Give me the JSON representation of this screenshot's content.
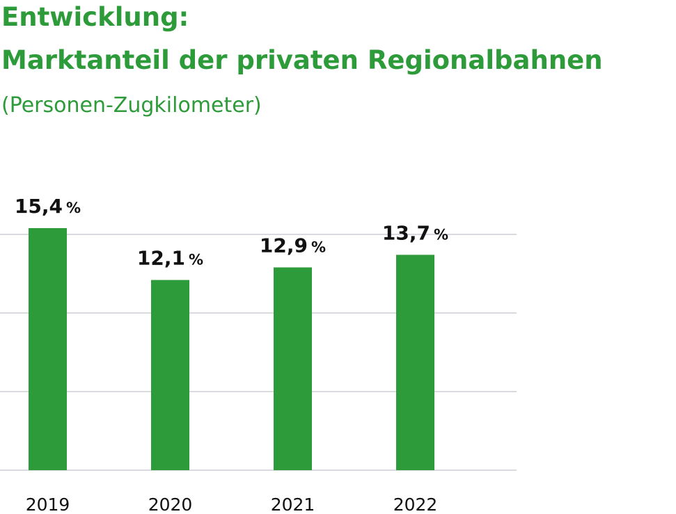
{
  "header": {
    "line1": "Entwicklung:",
    "line2": "Marktanteil der privaten Regionalbahnen",
    "subtitle": "(Personen-Zugkilometer)"
  },
  "colors": {
    "bar": "#2e9b3a",
    "title": "#2e9b3a",
    "grid": "#d9d9e0",
    "text": "#111111"
  },
  "chart_data": {
    "type": "bar",
    "title": "Entwicklung: Marktanteil der privaten Regionalbahnen",
    "subtitle": "(Personen-Zugkilometer)",
    "categories": [
      "2019",
      "2020",
      "2021",
      "2022"
    ],
    "values": [
      15.4,
      12.1,
      12.9,
      13.7
    ],
    "value_labels": [
      "15,4",
      "12,1",
      "12,9",
      "13,7"
    ],
    "unit": "%",
    "xlabel": "",
    "ylabel": "",
    "ylim": [
      0,
      15
    ],
    "grid_values": [
      0,
      5,
      10,
      15
    ],
    "grid": true,
    "y_tick_labels_shown": false,
    "legend": "none"
  }
}
